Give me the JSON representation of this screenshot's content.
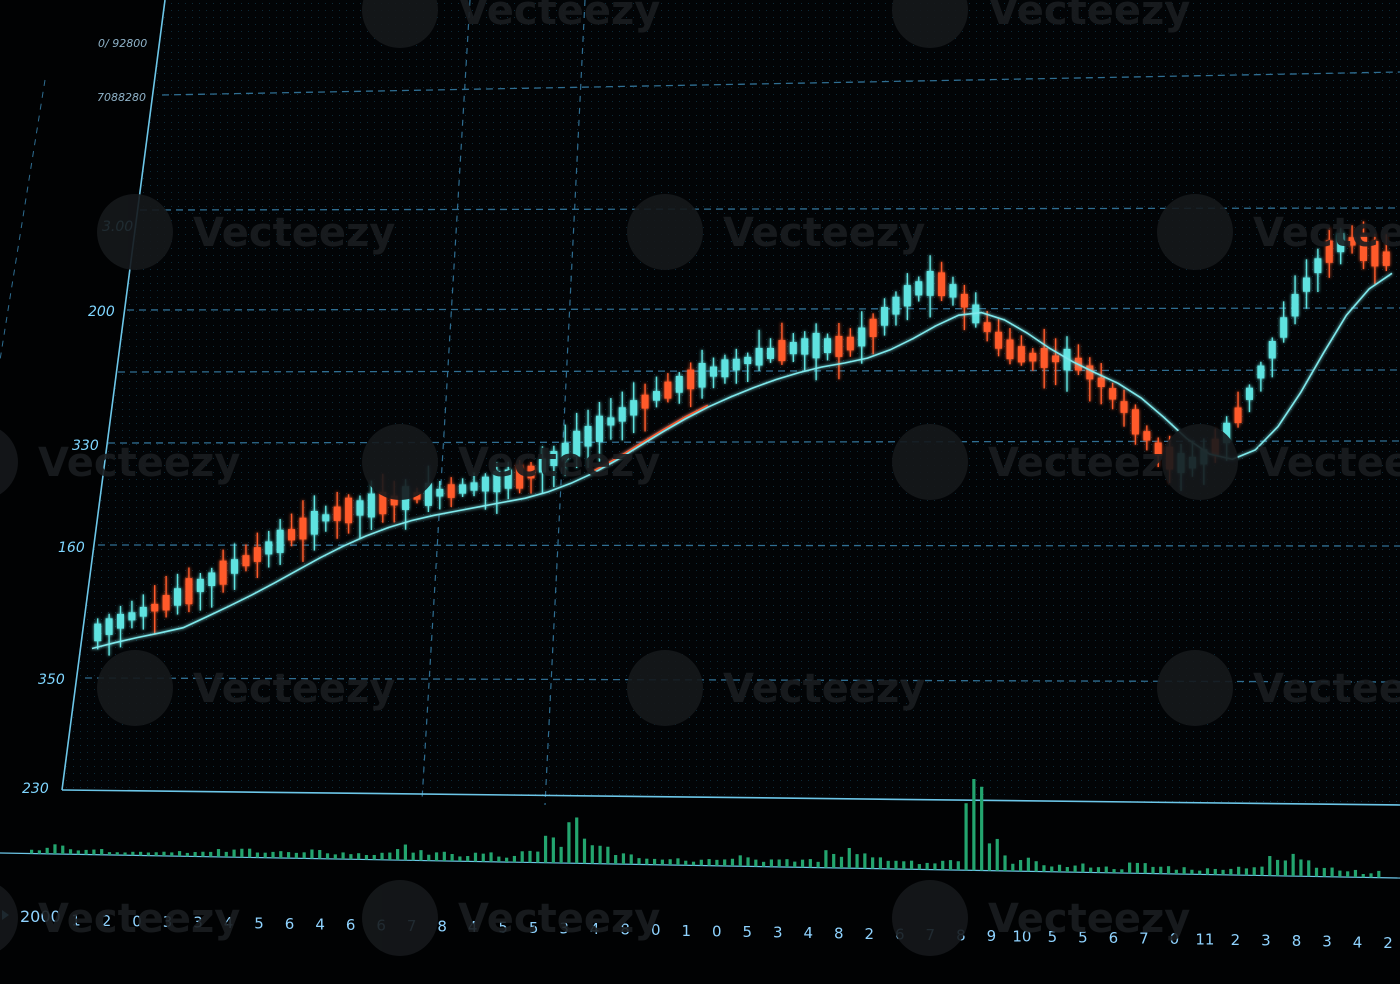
{
  "chart_data": {
    "type": "candlestick",
    "title": "",
    "xlabel": "",
    "ylabel": "",
    "y_tick_labels": [
      "230",
      "350",
      "160",
      "330",
      "200",
      "3.00",
      "7088280",
      "0/ 92800"
    ],
    "x_tick_labels": [
      "2000",
      "1",
      "2",
      "0",
      "3",
      "3",
      "4",
      "5",
      "6",
      "4",
      "6",
      "6",
      "7",
      "8",
      "4",
      "5",
      "5",
      "3",
      "4",
      "8",
      "0",
      "1",
      "0",
      "5",
      "3",
      "4",
      "8",
      "2",
      "6",
      "7",
      "8",
      "9",
      "10",
      "5",
      "5",
      "6",
      "7",
      "0",
      "11",
      "2",
      "3",
      "8",
      "3",
      "4",
      "2"
    ],
    "grid": true,
    "moving_average": true,
    "volume_bars": true,
    "colors": {
      "up": "#5fe3e0",
      "down": "#ff5a2a",
      "grid": "#2f6e92",
      "axis": "#6cc6e8",
      "volume": "#23a56f",
      "ma": "#7fe9ec"
    },
    "price_trace": [
      165,
      172,
      178,
      183,
      190,
      197,
      205,
      212,
      220,
      228,
      235,
      240,
      243,
      246,
      249,
      251,
      253,
      256,
      259,
      262,
      270,
      279,
      288,
      297,
      305,
      312,
      319,
      324,
      328,
      333,
      337,
      340,
      341,
      340,
      348,
      362,
      374,
      380,
      372,
      356,
      340,
      334,
      333,
      332,
      322,
      308,
      290,
      274,
      268,
      275,
      292,
      318,
      345,
      372,
      395,
      406,
      398,
      392
    ],
    "volume": [
      6,
      9,
      7,
      5,
      4,
      5,
      6,
      5,
      7,
      9,
      8,
      6,
      8,
      7,
      6,
      10,
      14,
      8,
      7,
      9,
      6,
      11,
      28,
      40,
      22,
      14,
      9,
      8,
      6,
      10,
      12,
      8,
      7,
      9,
      16,
      24,
      12,
      8,
      7,
      9,
      85,
      28,
      12,
      9,
      7,
      8,
      6,
      10,
      8,
      7,
      6,
      9,
      11,
      18,
      22,
      14,
      8,
      6
    ]
  },
  "watermark": {
    "text": "Vecteezy"
  }
}
